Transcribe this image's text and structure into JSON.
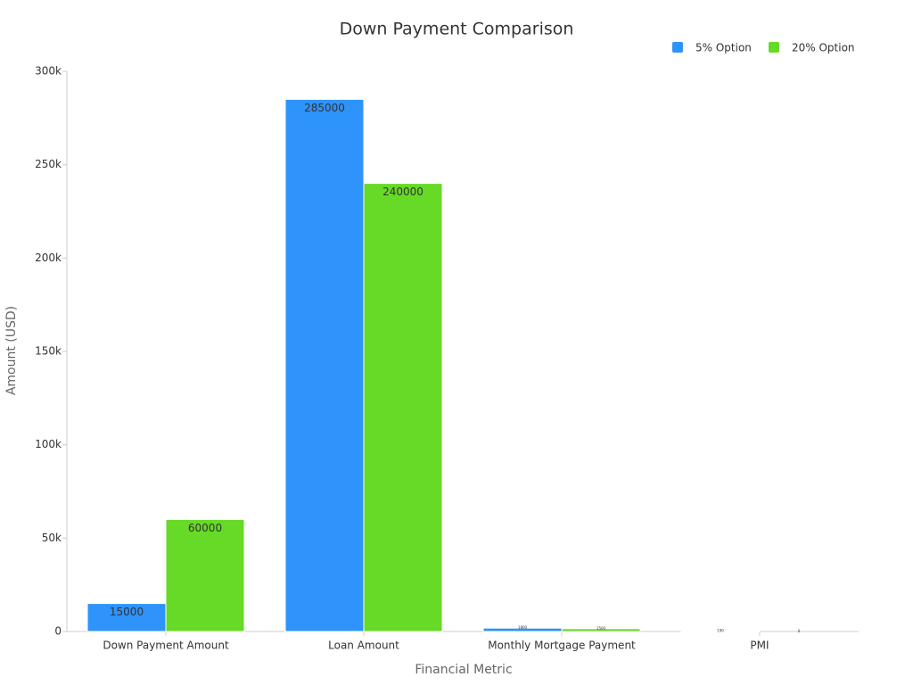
{
  "chart_data": {
    "type": "bar",
    "title": "Down Payment Comparison",
    "x_label": "Financial Metric",
    "y_label": "Amount (USD)",
    "categories": [
      "Down Payment Amount",
      "Loan Amount",
      "Monthly Mortgage Payment",
      "PMI"
    ],
    "series": [
      {
        "name": "5% Option",
        "color": "#2e93fa",
        "values": [
          15000,
          285000,
          1800,
          190
        ]
      },
      {
        "name": "20% Option",
        "color": "#66da26",
        "values": [
          60000,
          240000,
          1500,
          0
        ]
      }
    ],
    "ylim": [
      0,
      300000
    ],
    "yticks": [
      0,
      {
        "value": 50000,
        "label": "50k"
      },
      {
        "value": 100000,
        "label": "100k"
      },
      {
        "value": 150000,
        "label": "150k"
      },
      {
        "value": 200000,
        "label": "200k"
      },
      {
        "value": 250000,
        "label": "250k"
      },
      {
        "value": 300000,
        "label": "300k"
      }
    ],
    "legend": "top-right"
  }
}
